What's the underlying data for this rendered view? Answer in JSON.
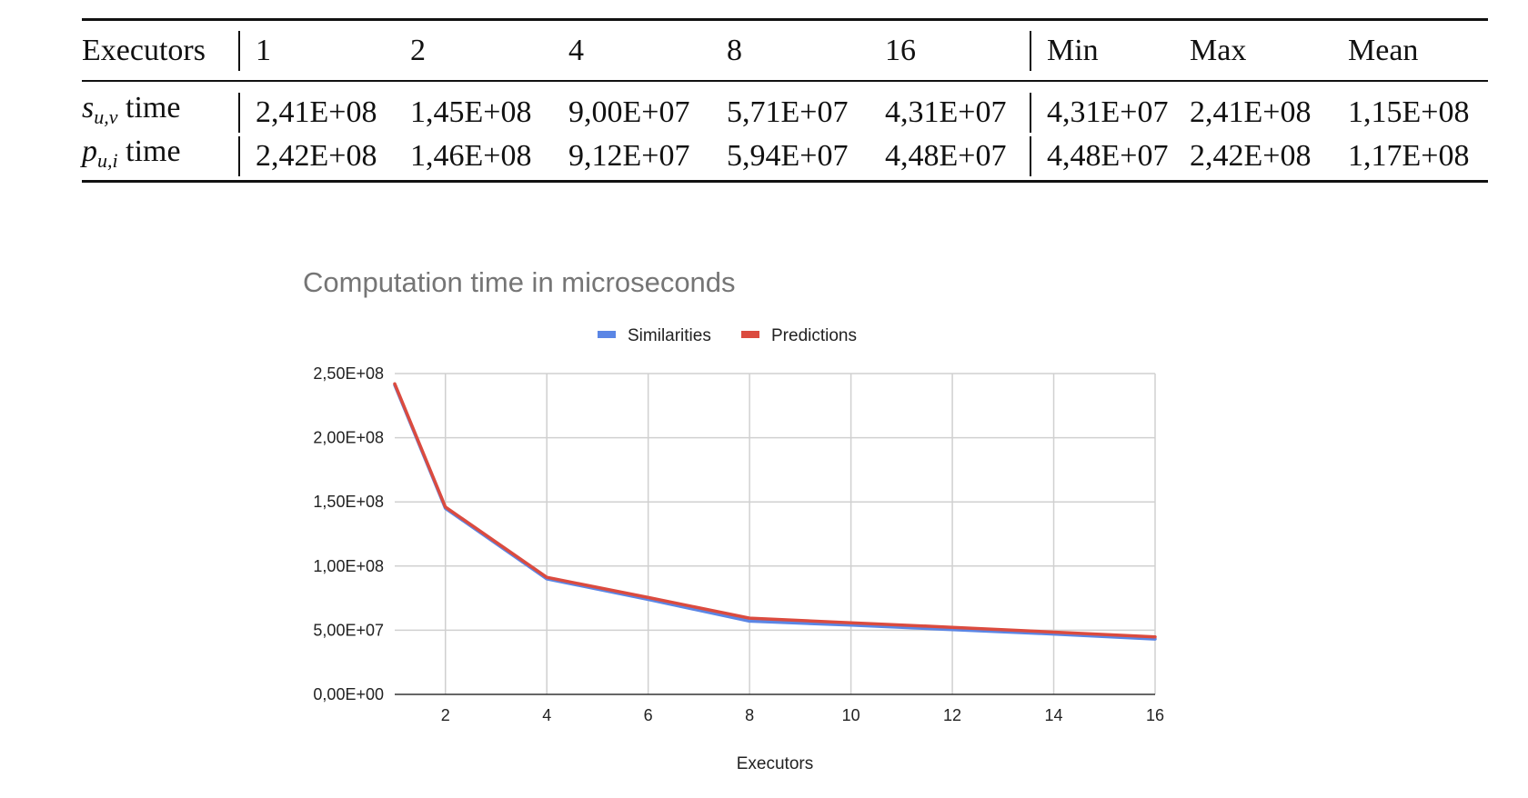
{
  "table": {
    "header": {
      "label": "Executors",
      "executors": [
        "1",
        "2",
        "4",
        "8",
        "16"
      ],
      "stats": [
        "Min",
        "Max",
        "Mean"
      ]
    },
    "rows": [
      {
        "symbol": "s",
        "subscript": "u,v",
        "suffix": " time",
        "values": [
          "2,41E+08",
          "1,45E+08",
          "9,00E+07",
          "5,71E+07",
          "4,31E+07"
        ],
        "stats": [
          "4,31E+07",
          "2,41E+08",
          "1,15E+08"
        ]
      },
      {
        "symbol": "p",
        "subscript": "u,i",
        "suffix": " time",
        "values": [
          "2,42E+08",
          "1,46E+08",
          "9,12E+07",
          "5,94E+07",
          "4,48E+07"
        ],
        "stats": [
          "4,48E+07",
          "2,42E+08",
          "1,17E+08"
        ]
      }
    ]
  },
  "chart_data": {
    "type": "line",
    "title": "Computation time in microseconds",
    "xlabel": "Executors",
    "ylabel": "",
    "xlim": [
      1,
      16
    ],
    "ylim": [
      0,
      250000000
    ],
    "x_ticks": [
      "2",
      "4",
      "6",
      "8",
      "10",
      "12",
      "14",
      "16"
    ],
    "y_ticks": [
      "0,00E+00",
      "5,00E+07",
      "1,00E+08",
      "1,50E+08",
      "2,00E+08",
      "2,50E+08"
    ],
    "grid": true,
    "legend_position": "top",
    "series": [
      {
        "name": "Similarities",
        "color": "#5b86e5",
        "x": [
          1,
          2,
          4,
          6,
          8,
          10,
          12,
          14,
          16
        ],
        "y": [
          241000000,
          145000000,
          90000000,
          74000000,
          57100000,
          54000000,
          50500000,
          47000000,
          43100000
        ]
      },
      {
        "name": "Predictions",
        "color": "#db4b3f",
        "x": [
          1,
          2,
          4,
          6,
          8,
          10,
          12,
          14,
          16
        ],
        "y": [
          242000000,
          146000000,
          91200000,
          75500000,
          59400000,
          55800000,
          52300000,
          48500000,
          44800000
        ]
      }
    ]
  }
}
